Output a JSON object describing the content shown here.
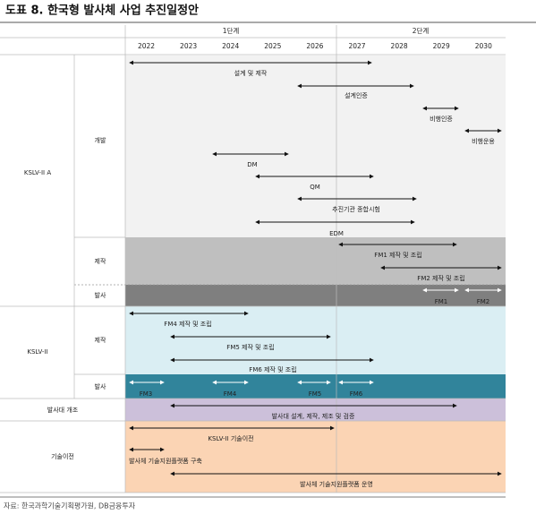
{
  "header": {
    "title": "도표 8. 한국형 발사체 사업 추진일정안"
  },
  "phases": [
    "1단계",
    "2단계"
  ],
  "years": [
    "2022",
    "2023",
    "2024",
    "2025",
    "2026",
    "2027",
    "2028",
    "2029",
    "2030"
  ],
  "groups": [
    {
      "label": "KSLV-II A",
      "sections": [
        {
          "label": "개발",
          "tasks": [
            "설계 및 제작",
            "설계인증",
            "비행인증",
            "비행운용",
            "DM",
            "QM",
            "추진기관 종합시험",
            "EDM"
          ]
        },
        {
          "label": "제작",
          "tasks": [
            "FM1 제작 및 조립",
            "FM2 제작 및 조립"
          ]
        },
        {
          "label": "발사",
          "tasks": [
            "FM1",
            "FM2"
          ]
        }
      ]
    },
    {
      "label": "KSLV-II",
      "sections": [
        {
          "label": "제작",
          "tasks": [
            "FM4 제작 및 조립",
            "FM5 제작 및 조립",
            "FM6 제작 및 조립"
          ]
        },
        {
          "label": "발사",
          "tasks": [
            "FM3",
            "FM4",
            "FM5",
            "FM6"
          ]
        }
      ]
    },
    {
      "label": "발사대 개조",
      "tasks": [
        "발사대 설계, 제작, 제조 및 검증"
      ]
    },
    {
      "label": "기술이전",
      "tasks": [
        "KSLV-II 기술이전",
        "발사체 기술지원플랫폼 구축",
        "발사체 기술지원플랫폼 운영"
      ]
    }
  ],
  "source": "자료: 한국과학기술기획평가원, DB금융투자"
}
